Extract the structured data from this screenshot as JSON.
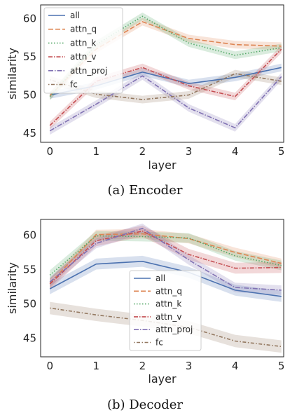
{
  "chart_data": [
    {
      "type": "line",
      "caption": "(a)  Encoder",
      "xlabel": "layer",
      "ylabel": "similarity",
      "x": [
        0,
        1,
        2,
        3,
        4,
        5
      ],
      "xticks": [
        "0",
        "1",
        "2",
        "3",
        "4",
        "5"
      ],
      "yticks": [
        "45",
        "50",
        "55",
        "60"
      ],
      "xlim": [
        -0.2,
        5.05
      ],
      "ylim": [
        43.8,
        61.8
      ],
      "legend": "upper-left",
      "grid": false,
      "series": [
        {
          "name": "all",
          "color": "#4c72b0",
          "dash": "",
          "values": [
            50.0,
            51.2,
            53.0,
            51.5,
            52.3,
            53.6
          ],
          "band": 0.5
        },
        {
          "name": "attn_q",
          "color": "#dd8452",
          "dash": "7 3",
          "values": [
            49.9,
            56.0,
            59.6,
            57.4,
            56.6,
            56.4
          ],
          "band": 0.5
        },
        {
          "name": "attn_k",
          "color": "#55a868",
          "dash": "1.5 2.5",
          "values": [
            49.8,
            56.6,
            60.3,
            56.8,
            55.2,
            56.2
          ],
          "band": 0.5
        },
        {
          "name": "attn_v",
          "color": "#c44e52",
          "dash": "6 2 1.5 2",
          "values": [
            46.0,
            51.8,
            53.6,
            51.2,
            49.8,
            56.0
          ],
          "band": 0.5
        },
        {
          "name": "attn_proj",
          "color": "#8172b3",
          "dash": "7 2 1.5 2",
          "values": [
            45.3,
            48.8,
            52.5,
            48.3,
            45.7,
            52.4
          ],
          "band": 0.5
        },
        {
          "name": "fc",
          "color": "#937860",
          "dash": "1.5 2.5 5 2.5",
          "values": [
            52.0,
            50.1,
            49.4,
            50.0,
            52.8,
            51.8
          ],
          "band": 0.5
        }
      ]
    },
    {
      "type": "line",
      "caption": "(b)  Decoder",
      "xlabel": "layer",
      "ylabel": "similarity",
      "x": [
        0,
        1,
        2,
        3,
        4,
        5
      ],
      "xticks": [
        "0",
        "1",
        "2",
        "3",
        "4",
        "5"
      ],
      "yticks": [
        "45",
        "50",
        "55",
        "60"
      ],
      "xlim": [
        -0.2,
        5.05
      ],
      "ylim": [
        42.3,
        62.3
      ],
      "legend": "center",
      "grid": false,
      "series": [
        {
          "name": "all",
          "color": "#4c72b0",
          "dash": "",
          "values": [
            52.2,
            55.8,
            56.2,
            54.6,
            52.0,
            51.1
          ],
          "band": 0.8
        },
        {
          "name": "attn_q",
          "color": "#dd8452",
          "dash": "7 3",
          "values": [
            53.0,
            60.1,
            60.2,
            59.5,
            57.5,
            55.9
          ],
          "band": 0.7
        },
        {
          "name": "attn_k",
          "color": "#55a868",
          "dash": "1.5 2.5",
          "values": [
            54.2,
            59.9,
            59.8,
            59.6,
            57.0,
            55.6
          ],
          "band": 0.7
        },
        {
          "name": "attn_v",
          "color": "#c44e52",
          "dash": "6 2 1.5 2",
          "values": [
            52.9,
            59.2,
            60.6,
            57.2,
            55.2,
            55.3
          ],
          "band": 0.8
        },
        {
          "name": "attn_proj",
          "color": "#8172b3",
          "dash": "7 2 1.5 2",
          "values": [
            53.2,
            58.8,
            61.0,
            56.4,
            52.4,
            52.0
          ],
          "band": 0.7
        },
        {
          "name": "fc",
          "color": "#937860",
          "dash": "1.5 2.5 5 2.5",
          "values": [
            49.4,
            48.4,
            47.6,
            46.6,
            44.6,
            43.8
          ],
          "band": 0.9
        }
      ]
    }
  ]
}
